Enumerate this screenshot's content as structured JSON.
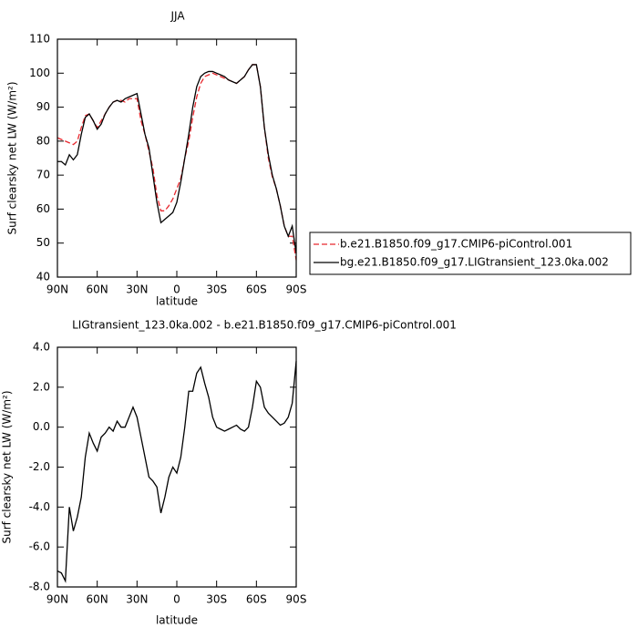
{
  "chart_data": [
    {
      "type": "line",
      "title": "JJA",
      "xlabel": "latitude",
      "ylabel": "Surf clearsky net LW  (W/m²)",
      "x": [
        90,
        87,
        84,
        81,
        78,
        75,
        72,
        69,
        66,
        63,
        60,
        57,
        54,
        51,
        48,
        45,
        42,
        39,
        36,
        33,
        30,
        27,
        24,
        21,
        18,
        15,
        12,
        9,
        6,
        3,
        0,
        -3,
        -6,
        -9,
        -12,
        -15,
        -18,
        -21,
        -24,
        -27,
        -30,
        -33,
        -36,
        -39,
        -42,
        -45,
        -48,
        -51,
        -54,
        -57,
        -60,
        -63,
        -66,
        -69,
        -72,
        -75,
        -78,
        -81,
        -84,
        -87,
        -90
      ],
      "xlim": [
        90,
        -90
      ],
      "xticks": [
        {
          "value": 90,
          "label": "90N"
        },
        {
          "value": 60,
          "label": "60N"
        },
        {
          "value": 30,
          "label": "30N"
        },
        0,
        {
          "value": -30,
          "label": "30S"
        },
        {
          "value": -60,
          "label": "60S"
        },
        {
          "value": -90,
          "label": "90S"
        }
      ],
      "ylim": [
        40,
        110
      ],
      "yticks": [
        40,
        50,
        60,
        70,
        80,
        90,
        100,
        110
      ],
      "legend": "right",
      "series": [
        {
          "name": "b.e21.B1850.f09_g17.CMIP6-piControl.001",
          "color": "#e8282e",
          "dashed": true,
          "values": [
            81,
            80.5,
            80,
            79.5,
            79,
            80,
            84,
            87.5,
            88,
            86,
            84,
            86,
            88,
            90,
            91.5,
            92,
            92,
            91.5,
            92.5,
            92.5,
            92.5,
            86,
            82,
            77,
            72,
            64,
            59.5,
            59.5,
            61,
            63,
            66,
            69,
            75,
            80,
            87,
            93,
            97,
            99,
            99.5,
            100,
            99.5,
            99,
            98.5,
            98,
            97.5,
            97,
            98,
            99,
            101,
            102.5,
            102.5,
            96,
            84,
            75,
            69.5,
            66,
            61,
            55,
            52,
            52,
            45
          ]
        },
        {
          "name": "bg.e21.B1850.f09_g17.LIGtransient_123.0ka.002",
          "color": "#000000",
          "dashed": false,
          "values": [
            74,
            74,
            73,
            76,
            74.5,
            76,
            82,
            87,
            88,
            86,
            83.5,
            85,
            88,
            90,
            91.5,
            92,
            91.5,
            92.5,
            93,
            93.5,
            94,
            88,
            82,
            78,
            70,
            62,
            56,
            57,
            58,
            59,
            62,
            68,
            75,
            82,
            90,
            96,
            99,
            100,
            100.5,
            100.5,
            100,
            99.5,
            99,
            98,
            97.5,
            97,
            98,
            99,
            101,
            102.5,
            102.5,
            96,
            84,
            76,
            70,
            66,
            61,
            55,
            52,
            55,
            47
          ]
        }
      ]
    },
    {
      "type": "line",
      "title": "LIGtransient_123.0ka.002 - b.e21.B1850.f09_g17.CMIP6-piControl.001",
      "xlabel": "latitude",
      "ylabel": "Surf clearsky net LW  (W/m²)",
      "x": [
        90,
        87,
        84,
        81,
        78,
        75,
        72,
        69,
        66,
        63,
        60,
        57,
        54,
        51,
        48,
        45,
        42,
        39,
        36,
        33,
        30,
        27,
        24,
        21,
        18,
        15,
        12,
        9,
        6,
        3,
        0,
        -3,
        -6,
        -9,
        -12,
        -15,
        -18,
        -21,
        -24,
        -27,
        -30,
        -33,
        -36,
        -39,
        -42,
        -45,
        -48,
        -51,
        -54,
        -57,
        -60,
        -63,
        -66,
        -69,
        -72,
        -75,
        -78,
        -81,
        -84,
        -87,
        -90
      ],
      "xlim": [
        90,
        -90
      ],
      "xticks": [
        {
          "value": 90,
          "label": "90N"
        },
        {
          "value": 60,
          "label": "60N"
        },
        {
          "value": 30,
          "label": "30N"
        },
        0,
        {
          "value": -30,
          "label": "30S"
        },
        {
          "value": -60,
          "label": "60S"
        },
        {
          "value": -90,
          "label": "90S"
        }
      ],
      "ylim": [
        -8,
        4
      ],
      "yticks": [
        {
          "value": -8,
          "label": "-8.0"
        },
        {
          "value": -6,
          "label": "-6.0"
        },
        {
          "value": -4,
          "label": "-4.0"
        },
        {
          "value": -2,
          "label": "-2.0"
        },
        {
          "value": 0,
          "label": "0.0"
        },
        {
          "value": 2,
          "label": "2.0"
        },
        {
          "value": 4,
          "label": "4.0"
        }
      ],
      "series": [
        {
          "color": "#000000",
          "dashed": false,
          "values": [
            -7.2,
            -7.3,
            -7.7,
            -4.0,
            -5.2,
            -4.5,
            -3.5,
            -1.5,
            -0.3,
            -0.8,
            -1.2,
            -0.5,
            -0.3,
            0.0,
            -0.2,
            0.3,
            0.0,
            0.0,
            0.5,
            1.0,
            0.5,
            -0.5,
            -1.5,
            -2.5,
            -2.7,
            -3.0,
            -4.3,
            -3.5,
            -2.5,
            -2.0,
            -2.3,
            -1.5,
            0.0,
            1.8,
            1.8,
            2.7,
            3.0,
            2.2,
            1.5,
            0.5,
            0.0,
            -0.1,
            -0.2,
            -0.1,
            0.0,
            0.1,
            -0.1,
            -0.2,
            0.0,
            1.0,
            2.3,
            2.0,
            1.0,
            0.7,
            0.5,
            0.3,
            0.1,
            0.2,
            0.5,
            1.2,
            3.3
          ]
        }
      ]
    }
  ]
}
